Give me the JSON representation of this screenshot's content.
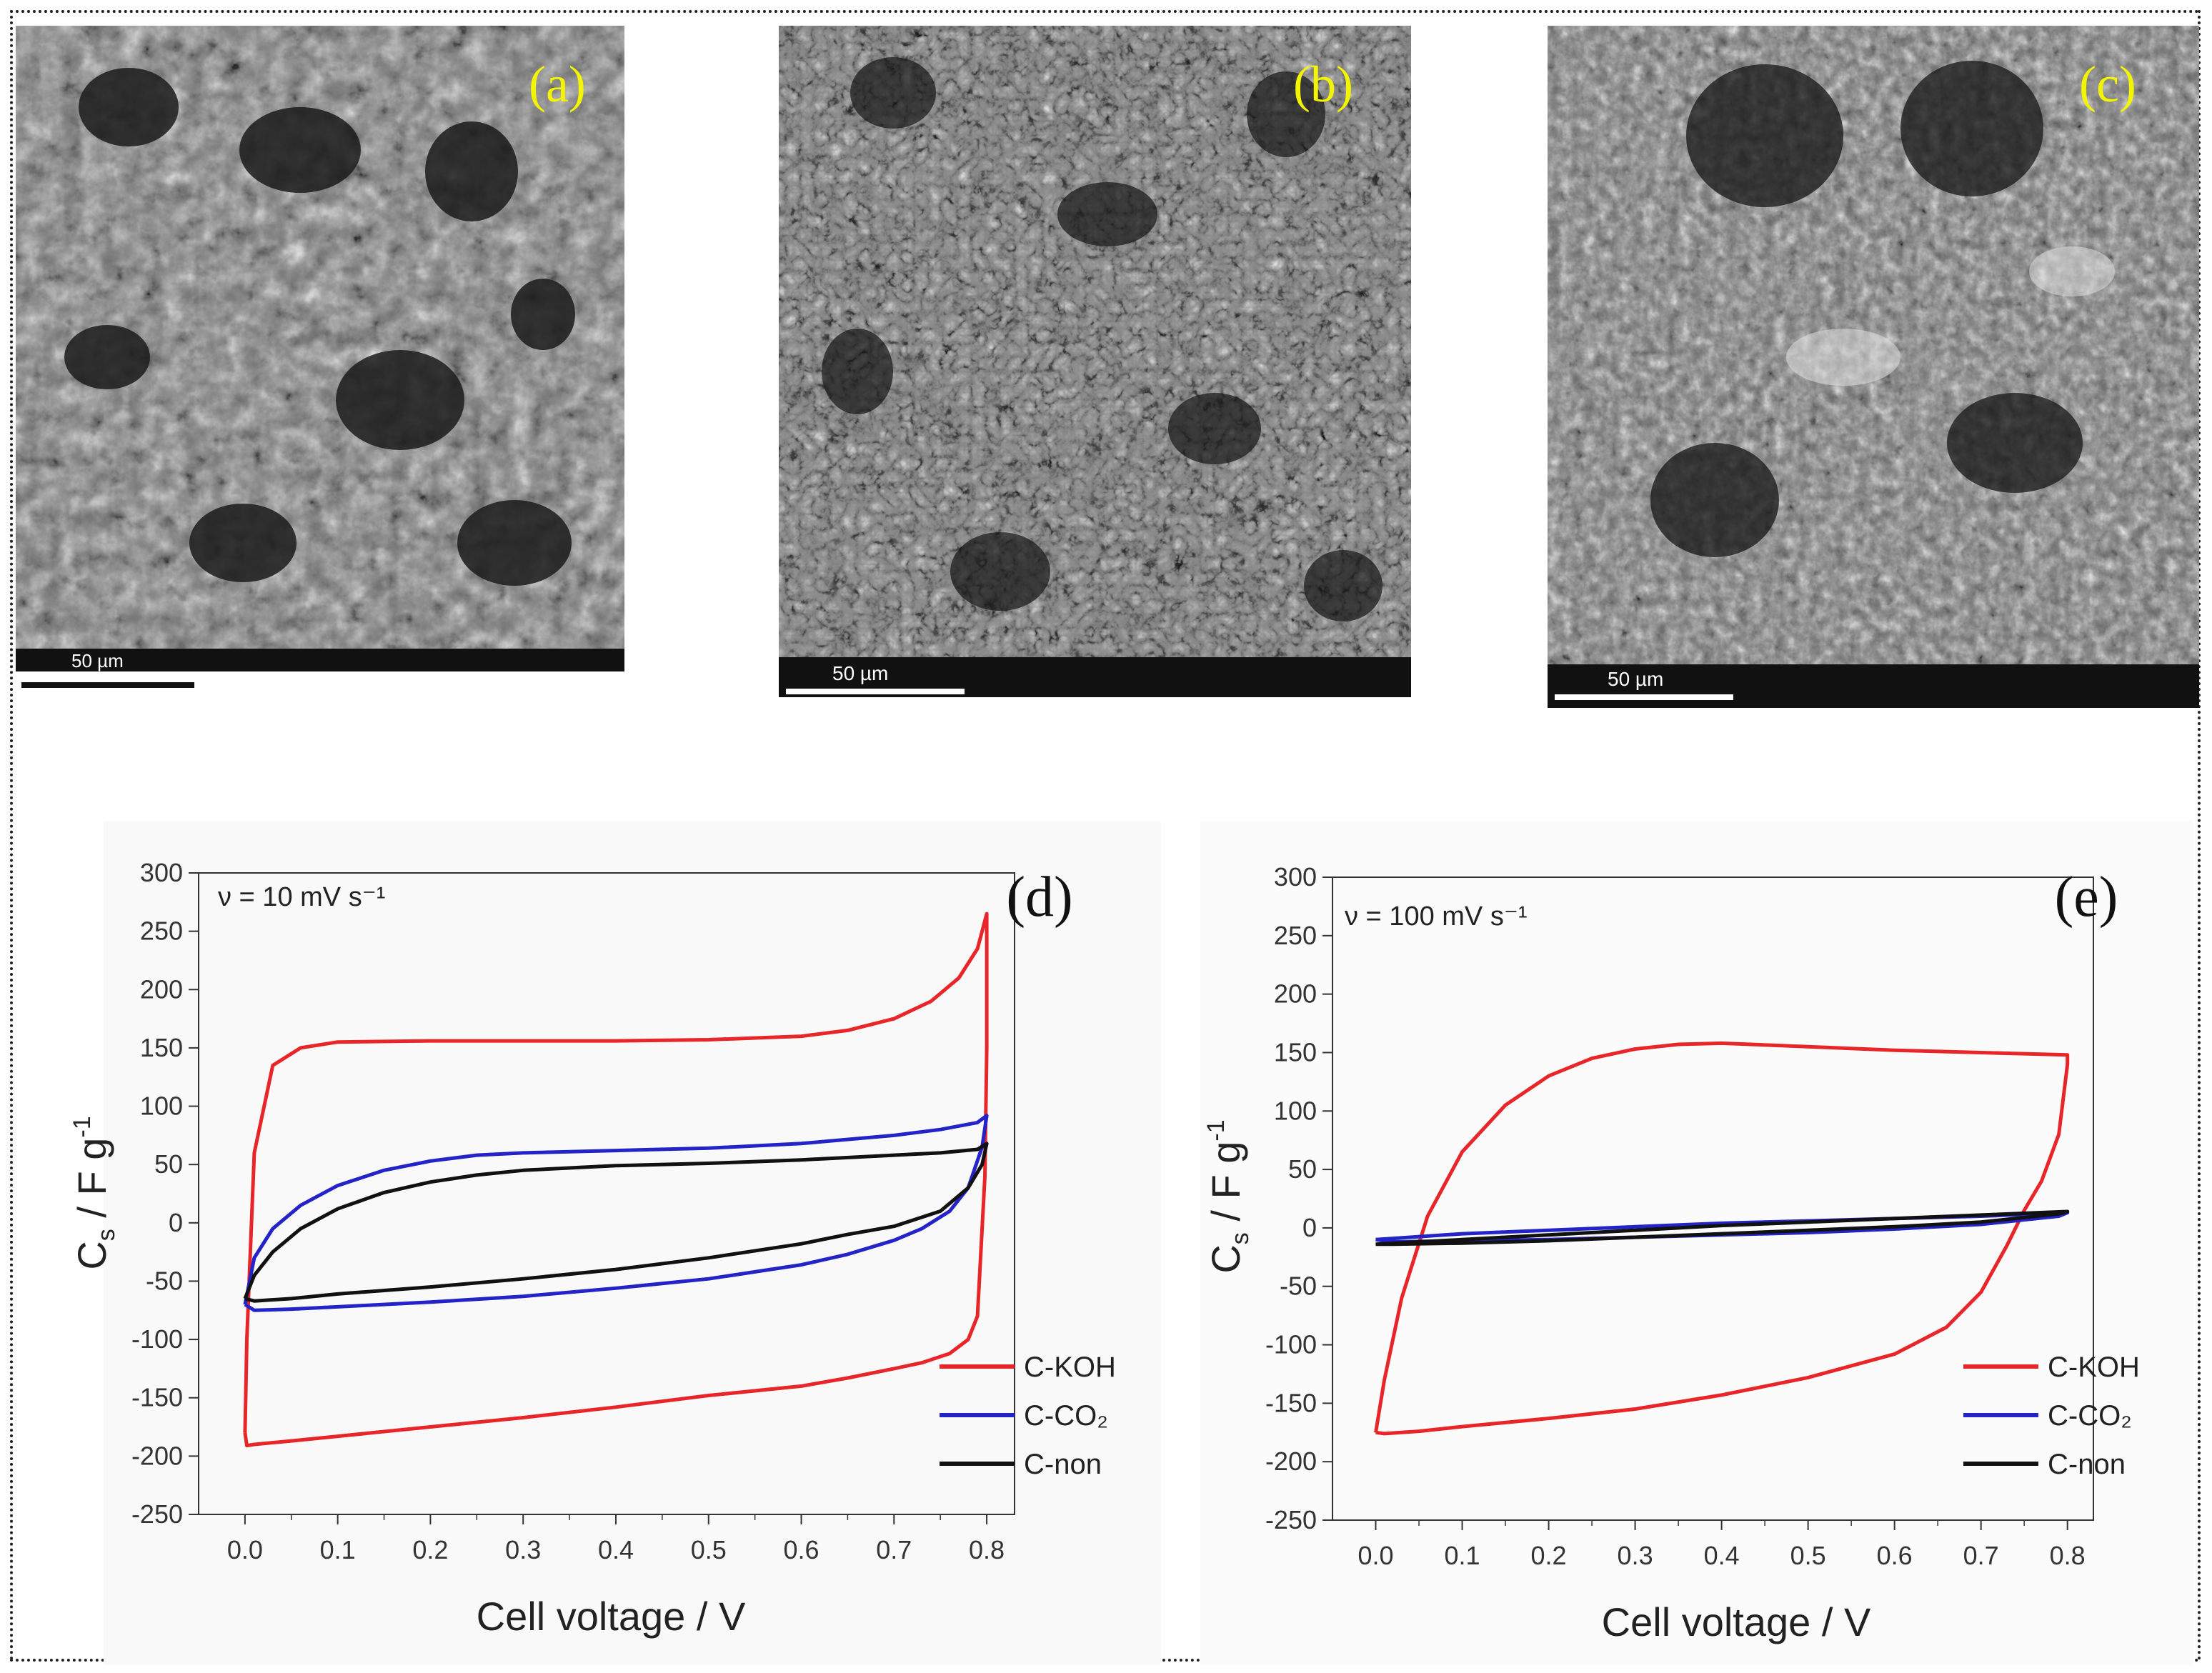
{
  "figure": {
    "panels": [
      {
        "label": "(a)",
        "scale_bar": "50 µm"
      },
      {
        "label": "(b)",
        "scale_bar": "50 µm"
      },
      {
        "label": "(c)",
        "scale_bar": "50 µm"
      }
    ]
  },
  "colors": {
    "label_yellow": "#f3f500",
    "koh": "#e8262a",
    "co2": "#2323c8",
    "non": "#111111"
  },
  "chart_data": [
    {
      "type": "line",
      "panel_label": "(d)",
      "annotation": "ν = 10 mV s⁻¹",
      "xlabel": "Cell voltage / V",
      "ylabel_main": "C",
      "ylabel_sub": "s",
      "ylabel_rest": " / F g",
      "ylabel_sup": "-1",
      "xlim": [
        -0.05,
        0.83
      ],
      "ylim": [
        -250,
        300
      ],
      "xticks": [
        "0.0",
        "0.1",
        "0.2",
        "0.3",
        "0.4",
        "0.5",
        "0.6",
        "0.7",
        "0.8"
      ],
      "yticks": [
        "300",
        "250",
        "200",
        "150",
        "100",
        "50",
        "0",
        "-50",
        "-100",
        "-150",
        "-200",
        "-250"
      ],
      "legend": [
        "C-KOH",
        "C-CO₂",
        "C-non"
      ],
      "series": [
        {
          "name": "C-KOH",
          "x": [
            0,
            0.002,
            0.01,
            0.03,
            0.06,
            0.1,
            0.2,
            0.3,
            0.4,
            0.5,
            0.6,
            0.65,
            0.7,
            0.74,
            0.77,
            0.79,
            0.8,
            0.8,
            0.798,
            0.79,
            0.78,
            0.76,
            0.73,
            0.7,
            0.65,
            0.6,
            0.5,
            0.4,
            0.3,
            0.2,
            0.1,
            0.05,
            0.01,
            0.002,
            0
          ],
          "y": [
            -180,
            -100,
            60,
            135,
            150,
            155,
            156,
            156,
            156,
            157,
            160,
            165,
            175,
            190,
            210,
            235,
            265,
            150,
            40,
            -80,
            -100,
            -112,
            -120,
            -125,
            -133,
            -140,
            -148,
            -158,
            -167,
            -175,
            -183,
            -187,
            -190,
            -191,
            -180
          ]
        },
        {
          "name": "C-CO₂",
          "x": [
            0,
            0.01,
            0.03,
            0.06,
            0.1,
            0.15,
            0.2,
            0.25,
            0.3,
            0.4,
            0.5,
            0.6,
            0.7,
            0.75,
            0.79,
            0.8,
            0.795,
            0.78,
            0.76,
            0.73,
            0.7,
            0.65,
            0.6,
            0.5,
            0.4,
            0.3,
            0.2,
            0.1,
            0.05,
            0.01,
            0
          ],
          "y": [
            -70,
            -30,
            -5,
            15,
            32,
            45,
            53,
            58,
            60,
            62,
            64,
            68,
            75,
            80,
            86,
            92,
            65,
            30,
            10,
            -5,
            -15,
            -27,
            -36,
            -48,
            -56,
            -63,
            -68,
            -72,
            -74,
            -75,
            -70
          ]
        },
        {
          "name": "C-non",
          "x": [
            0,
            0.01,
            0.03,
            0.06,
            0.1,
            0.15,
            0.2,
            0.25,
            0.3,
            0.4,
            0.5,
            0.6,
            0.7,
            0.75,
            0.79,
            0.8,
            0.795,
            0.78,
            0.75,
            0.7,
            0.65,
            0.6,
            0.5,
            0.4,
            0.3,
            0.2,
            0.1,
            0.05,
            0.01,
            0
          ],
          "y": [
            -65,
            -45,
            -25,
            -5,
            12,
            26,
            35,
            41,
            45,
            49,
            51,
            54,
            58,
            60,
            63,
            68,
            50,
            30,
            10,
            -3,
            -10,
            -18,
            -30,
            -40,
            -48,
            -55,
            -61,
            -65,
            -67,
            -65
          ]
        }
      ]
    },
    {
      "type": "line",
      "panel_label": "(e)",
      "annotation": "ν = 100 mV s⁻¹",
      "xlabel": "Cell voltage / V",
      "ylabel_main": "C",
      "ylabel_sub": "s",
      "ylabel_rest": " / F g",
      "ylabel_sup": "-1",
      "xlim": [
        -0.05,
        0.83
      ],
      "ylim": [
        -250,
        300
      ],
      "xticks": [
        "0.0",
        "0.1",
        "0.2",
        "0.3",
        "0.4",
        "0.5",
        "0.6",
        "0.7",
        "0.8"
      ],
      "yticks": [
        "300",
        "250",
        "200",
        "150",
        "100",
        "50",
        "0",
        "-50",
        "-100",
        "-150",
        "-200",
        "-250"
      ],
      "legend": [
        "C-KOH",
        "C-CO₂",
        "C-non"
      ],
      "series": [
        {
          "name": "C-KOH",
          "x": [
            0,
            0.01,
            0.03,
            0.06,
            0.1,
            0.15,
            0.2,
            0.25,
            0.3,
            0.35,
            0.4,
            0.5,
            0.6,
            0.7,
            0.75,
            0.8,
            0.8,
            0.79,
            0.77,
            0.75,
            0.73,
            0.7,
            0.66,
            0.6,
            0.5,
            0.4,
            0.3,
            0.2,
            0.1,
            0.05,
            0.01,
            0
          ],
          "y": [
            -175,
            -130,
            -60,
            10,
            65,
            105,
            130,
            145,
            153,
            157,
            158,
            155,
            152,
            150,
            149,
            148,
            140,
            80,
            40,
            15,
            -15,
            -55,
            -85,
            -108,
            -128,
            -143,
            -155,
            -163,
            -170,
            -174,
            -176,
            -175
          ]
        },
        {
          "name": "C-CO₂",
          "x": [
            0,
            0.1,
            0.2,
            0.3,
            0.4,
            0.5,
            0.6,
            0.7,
            0.8,
            0.79,
            0.7,
            0.6,
            0.5,
            0.4,
            0.3,
            0.2,
            0.1,
            0.02,
            0
          ],
          "y": [
            -10,
            -5,
            -2,
            1,
            4,
            6,
            8,
            10,
            13,
            10,
            3,
            -1,
            -4,
            -6,
            -8,
            -10,
            -11,
            -12,
            -10
          ]
        },
        {
          "name": "C-non",
          "x": [
            0,
            0.1,
            0.2,
            0.3,
            0.4,
            0.5,
            0.6,
            0.7,
            0.8,
            0.79,
            0.7,
            0.6,
            0.5,
            0.4,
            0.3,
            0.2,
            0.1,
            0.02,
            0
          ],
          "y": [
            -14,
            -10,
            -6,
            -2,
            2,
            5,
            8,
            11,
            14,
            12,
            5,
            1,
            -2,
            -5,
            -8,
            -11,
            -13,
            -14,
            -14
          ]
        }
      ]
    }
  ]
}
